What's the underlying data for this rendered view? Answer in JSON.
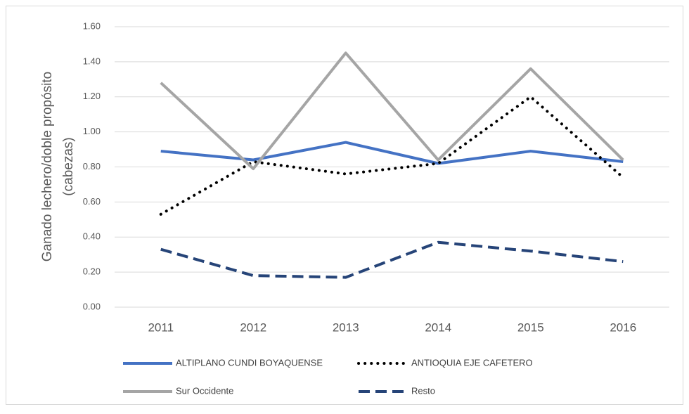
{
  "chart_data": {
    "type": "line",
    "y_label": [
      "Ganado lechero/doble propósito",
      "(cabezas)"
    ],
    "categories": [
      "2011",
      "2012",
      "2013",
      "2014",
      "2015",
      "2016"
    ],
    "series": [
      {
        "name": "ALTIPLANO CUNDI BOYAQUENSE",
        "color": "#4472c4",
        "dash": "solid",
        "values": [
          0.89,
          0.84,
          0.94,
          0.82,
          0.89,
          0.83
        ]
      },
      {
        "name": "ANTIOQUIA EJE CAFETERO",
        "color": "#000000",
        "dash": "dotted",
        "values": [
          0.53,
          0.83,
          0.76,
          0.82,
          1.2,
          0.74
        ]
      },
      {
        "name": "Sur Occidente",
        "color": "#a5a5a5",
        "dash": "solid",
        "values": [
          1.28,
          0.79,
          1.45,
          0.84,
          1.36,
          0.84
        ]
      },
      {
        "name": "Resto",
        "color": "#264478",
        "dash": "dashed",
        "values": [
          0.33,
          0.18,
          0.17,
          0.37,
          0.32,
          0.26
        ]
      }
    ],
    "ylim": [
      0,
      1.6
    ],
    "yticks": [
      {
        "value": 0,
        "label": "0.00"
      },
      {
        "value": 0.2,
        "label": "0.20"
      },
      {
        "value": 0.4,
        "label": "0.40"
      },
      {
        "value": 0.6,
        "label": "0.60"
      },
      {
        "value": 0.8,
        "label": "0.80"
      },
      {
        "value": 1.0,
        "label": "1.00"
      },
      {
        "value": 1.2,
        "label": "1.20"
      },
      {
        "value": 1.4,
        "label": "1.40"
      },
      {
        "value": 1.6,
        "label": "1.60"
      }
    ],
    "grid": true
  }
}
